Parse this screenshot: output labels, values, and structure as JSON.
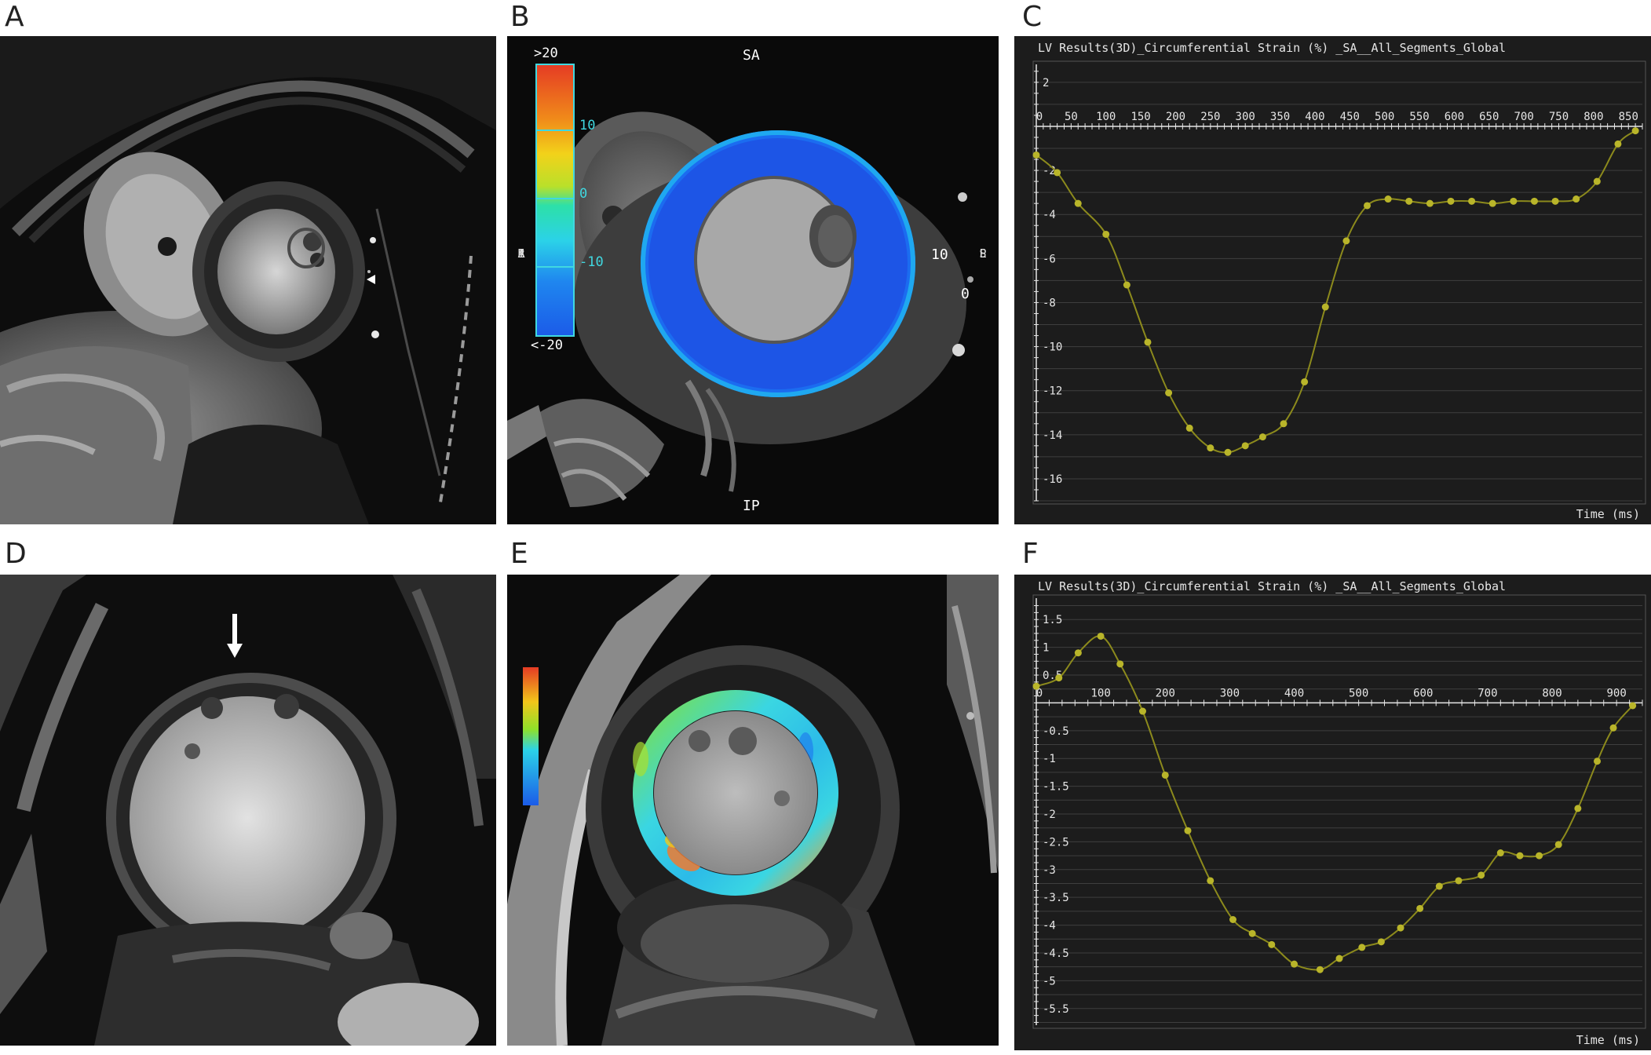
{
  "panels": {
    "A": {
      "letter": "A"
    },
    "B": {
      "letter": "B",
      "label_top": "SA",
      "label_bottom": "IP",
      "label_right_10": "10",
      "label_right_0": "0",
      "orient_left": [
        "R",
        "A",
        "I"
      ],
      "orient_right": [
        "L",
        "P",
        "S"
      ],
      "colorbar": {
        "max": ">20",
        "min": "<-20",
        "ticks": [
          "10",
          "0",
          "-10"
        ]
      }
    },
    "C": {
      "letter": "C"
    },
    "D": {
      "letter": "D"
    },
    "E": {
      "letter": "E"
    },
    "F": {
      "letter": "F"
    }
  },
  "colors": {
    "curve": "#8c8a1c",
    "point": "#b9b52a",
    "chart_bg": "#1c1c1c",
    "grid": "#3e3e3e",
    "axis": "#e6e6e6"
  },
  "chart_data": [
    {
      "id": "C",
      "type": "line",
      "title": "LV Results(3D)_Circumferential Strain (%) _SA__All_Segments_Global",
      "xlabel": "Time (ms)",
      "ylabel": "",
      "xlim": [
        0,
        870
      ],
      "ylim": [
        -17,
        2.6
      ],
      "x_ticks": [
        0,
        50,
        100,
        150,
        200,
        250,
        300,
        350,
        400,
        450,
        500,
        550,
        600,
        650,
        700,
        750,
        800,
        850
      ],
      "y_ticks": [
        2,
        0,
        -2,
        -4,
        -6,
        -8,
        -10,
        -12,
        -14,
        -16
      ],
      "x": [
        0,
        30,
        60,
        100,
        130,
        160,
        190,
        220,
        250,
        275,
        300,
        325,
        355,
        385,
        415,
        445,
        475,
        505,
        535,
        565,
        595,
        625,
        655,
        685,
        715,
        745,
        775,
        805,
        835,
        860
      ],
      "y": [
        -1.3,
        -2.1,
        -3.5,
        -4.9,
        -7.2,
        -9.8,
        -12.1,
        -13.7,
        -14.6,
        -14.8,
        -14.5,
        -14.1,
        -13.5,
        -11.6,
        -8.2,
        -5.2,
        -3.6,
        -3.3,
        -3.4,
        -3.5,
        -3.4,
        -3.4,
        -3.5,
        -3.4,
        -3.4,
        -3.4,
        -3.3,
        -2.5,
        -0.8,
        -0.2
      ],
      "grid": true
    },
    {
      "id": "F",
      "type": "line",
      "title": "LV Results(3D)_Circumferential Strain (%) _SA__All_Segments_Global",
      "xlabel": "Time (ms)",
      "ylabel": "",
      "xlim": [
        0,
        940
      ],
      "ylim": [
        -5.8,
        1.8
      ],
      "x_ticks": [
        0,
        100,
        200,
        300,
        400,
        500,
        600,
        700,
        800,
        900
      ],
      "y_ticks": [
        1.5,
        1,
        0.5,
        0,
        -0.5,
        -1,
        -1.5,
        -2,
        -2.5,
        -3,
        -3.5,
        -4,
        -4.5,
        -5,
        -5.5
      ],
      "x": [
        0,
        35,
        65,
        100,
        130,
        165,
        200,
        235,
        270,
        305,
        335,
        365,
        400,
        440,
        470,
        505,
        535,
        565,
        595,
        625,
        655,
        690,
        720,
        750,
        780,
        810,
        840,
        870,
        895,
        925
      ],
      "y": [
        0.3,
        0.45,
        0.9,
        1.2,
        0.7,
        -0.15,
        -1.3,
        -2.3,
        -3.2,
        -3.9,
        -4.15,
        -4.35,
        -4.7,
        -4.8,
        -4.6,
        -4.4,
        -4.3,
        -4.05,
        -3.7,
        -3.3,
        -3.2,
        -3.1,
        -2.7,
        -2.75,
        -2.75,
        -2.55,
        -1.9,
        -1.05,
        -0.45,
        -0.05
      ],
      "grid": true
    }
  ]
}
